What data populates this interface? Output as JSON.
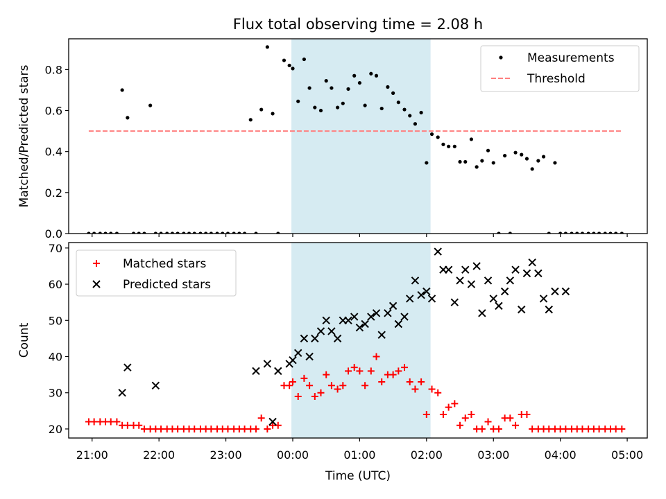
{
  "title": "Flux total observing time = 2.08 h",
  "chart_data": [
    {
      "type": "scatter",
      "panel": "top",
      "xlabel": "",
      "ylabel": "Matched/Predicted stars",
      "x_axis": "time of day (UTC), hours relative to 00:00",
      "xlim": [
        -3.35,
        5.3
      ],
      "ylim": [
        0.0,
        0.95
      ],
      "yticks": [
        0.0,
        0.2,
        0.4,
        0.6,
        0.8
      ],
      "ytick_labels": [
        "0.0",
        "0.2",
        "0.4",
        "0.6",
        "0.8"
      ],
      "shaded_interval": [
        -0.02,
        2.06
      ],
      "legend_position": "upper right",
      "series": [
        {
          "name": "Measurements",
          "color": "#000000",
          "marker": "dot",
          "x": [
            -3.05,
            -2.97,
            -2.88,
            -2.8,
            -2.72,
            -2.63,
            -2.55,
            -2.47,
            -2.38,
            -2.3,
            -2.22,
            -2.13,
            -2.05,
            -1.97,
            -1.88,
            -1.8,
            -1.72,
            -1.63,
            -1.55,
            -1.47,
            -1.38,
            -1.3,
            -1.22,
            -1.13,
            -1.05,
            -0.97,
            -0.88,
            -0.8,
            -0.72,
            -0.63,
            -0.55,
            -0.47,
            -0.38,
            -0.3,
            -0.22,
            -0.13,
            -0.05,
            0.0,
            0.08,
            0.17,
            0.25,
            0.33,
            0.42,
            0.5,
            0.58,
            0.67,
            0.75,
            0.83,
            0.92,
            1.0,
            1.08,
            1.17,
            1.25,
            1.33,
            1.42,
            1.5,
            1.58,
            1.67,
            1.75,
            1.83,
            1.92,
            2.0,
            2.08,
            2.17,
            2.25,
            2.33,
            2.42,
            2.5,
            2.58,
            2.67,
            2.75,
            2.83,
            2.92,
            3.0,
            3.08,
            3.17,
            3.25,
            3.33,
            3.42,
            3.5,
            3.58,
            3.67,
            3.75,
            3.83,
            3.92,
            4.0,
            4.08,
            4.17,
            4.25,
            4.33,
            4.42,
            4.5,
            4.58,
            4.67,
            4.75,
            4.83,
            4.92
          ],
          "y": [
            0.0,
            0.0,
            0.0,
            0.0,
            0.0,
            0.0,
            0.7,
            0.565,
            0.0,
            0.0,
            0.0,
            0.625,
            0.0,
            0.0,
            0.0,
            0.0,
            0.0,
            0.0,
            0.0,
            0.0,
            0.0,
            0.0,
            0.0,
            0.0,
            0.0,
            0.0,
            0.0,
            0.0,
            0.0,
            0.555,
            0.0,
            0.605,
            0.91,
            0.585,
            0.0,
            0.845,
            0.82,
            0.805,
            0.645,
            0.85,
            0.71,
            0.615,
            0.6,
            0.745,
            0.71,
            0.615,
            0.635,
            0.705,
            0.77,
            0.735,
            0.625,
            0.78,
            0.77,
            0.61,
            0.715,
            0.685,
            0.64,
            0.605,
            0.575,
            0.535,
            0.59,
            0.345,
            0.485,
            0.47,
            0.435,
            0.425,
            0.425,
            0.35,
            0.35,
            0.46,
            0.325,
            0.355,
            0.405,
            0.345,
            0.0,
            0.38,
            0.0,
            0.395,
            0.385,
            0.365,
            0.315,
            0.355,
            0.375,
            0.0,
            0.345,
            0.0,
            0.0,
            0.0,
            0.0,
            0.0,
            0.0,
            0.0,
            0.0,
            0.0,
            0.0,
            0.0,
            0.0
          ]
        },
        {
          "name": "Threshold",
          "color": "#ff7f7f",
          "style": "dashed",
          "x": [
            -3.05,
            4.92
          ],
          "y": [
            0.5,
            0.5
          ]
        }
      ]
    },
    {
      "type": "scatter",
      "panel": "bottom",
      "xlabel": "Time (UTC)",
      "ylabel": "Count",
      "x_axis": "time of day (UTC), hours relative to 00:00",
      "xlim": [
        -3.35,
        5.3
      ],
      "ylim": [
        17.5,
        71.5
      ],
      "xticks": [
        -3,
        -2,
        -1,
        0,
        1,
        2,
        3,
        4,
        5
      ],
      "xtick_labels": [
        "21:00",
        "22:00",
        "23:00",
        "00:00",
        "01:00",
        "02:00",
        "03:00",
        "04:00",
        "05:00"
      ],
      "yticks": [
        20,
        30,
        40,
        50,
        60,
        70
      ],
      "ytick_labels": [
        "20",
        "30",
        "40",
        "50",
        "60",
        "70"
      ],
      "shaded_interval": [
        -0.02,
        2.06
      ],
      "legend_position": "upper left",
      "series": [
        {
          "name": "Matched stars",
          "color": "#ff0000",
          "marker": "plus",
          "x": [
            -3.05,
            -2.97,
            -2.88,
            -2.8,
            -2.72,
            -2.63,
            -2.55,
            -2.47,
            -2.38,
            -2.3,
            -2.22,
            -2.13,
            -2.05,
            -1.97,
            -1.88,
            -1.8,
            -1.72,
            -1.63,
            -1.55,
            -1.47,
            -1.38,
            -1.3,
            -1.22,
            -1.13,
            -1.05,
            -0.97,
            -0.88,
            -0.8,
            -0.72,
            -0.63,
            -0.55,
            -0.47,
            -0.38,
            -0.3,
            -0.22,
            -0.13,
            -0.05,
            0.0,
            0.08,
            0.17,
            0.25,
            0.33,
            0.42,
            0.5,
            0.58,
            0.67,
            0.75,
            0.83,
            0.92,
            1.0,
            1.08,
            1.17,
            1.25,
            1.33,
            1.42,
            1.5,
            1.58,
            1.67,
            1.75,
            1.83,
            1.92,
            2.0,
            2.08,
            2.17,
            2.25,
            2.33,
            2.42,
            2.5,
            2.58,
            2.67,
            2.75,
            2.83,
            2.92,
            3.0,
            3.08,
            3.17,
            3.25,
            3.33,
            3.42,
            3.5,
            3.58,
            3.67,
            3.75,
            3.83,
            3.92,
            4.0,
            4.08,
            4.17,
            4.25,
            4.33,
            4.42,
            4.5,
            4.58,
            4.67,
            4.75,
            4.83,
            4.92
          ],
          "y": [
            22,
            22,
            22,
            22,
            22,
            22,
            21,
            21,
            21,
            21,
            20,
            20,
            20,
            20,
            20,
            20,
            20,
            20,
            20,
            20,
            20,
            20,
            20,
            20,
            20,
            20,
            20,
            20,
            20,
            20,
            20,
            23,
            20,
            21,
            21,
            32,
            32,
            33,
            29,
            34,
            32,
            29,
            30,
            35,
            32,
            31,
            32,
            36,
            37,
            36,
            32,
            36,
            40,
            33,
            35,
            35,
            36,
            37,
            33,
            31,
            33,
            24,
            31,
            30,
            24,
            26,
            27,
            21,
            23,
            24,
            20,
            20,
            22,
            20,
            20,
            23,
            23,
            21,
            24,
            24,
            20,
            20,
            20,
            20,
            20,
            20,
            20,
            20,
            20,
            20,
            20,
            20,
            20,
            20,
            20,
            20,
            20
          ]
        },
        {
          "name": "Predicted stars",
          "color": "#000000",
          "marker": "x",
          "x": [
            -2.55,
            -2.47,
            -2.05,
            -0.55,
            -0.38,
            -0.3,
            -0.22,
            -0.05,
            0.0,
            0.08,
            0.17,
            0.25,
            0.33,
            0.42,
            0.5,
            0.58,
            0.67,
            0.75,
            0.83,
            0.92,
            1.0,
            1.08,
            1.17,
            1.25,
            1.33,
            1.42,
            1.5,
            1.58,
            1.67,
            1.75,
            1.83,
            1.92,
            2.0,
            2.08,
            2.17,
            2.25,
            2.33,
            2.42,
            2.5,
            2.58,
            2.67,
            2.75,
            2.83,
            2.92,
            3.0,
            3.08,
            3.17,
            3.25,
            3.33,
            3.42,
            3.5,
            3.58,
            3.67,
            3.75,
            3.83,
            3.92,
            4.08
          ],
          "y": [
            30,
            37,
            32,
            36,
            38,
            22,
            36,
            38,
            39,
            41,
            45,
            40,
            45,
            47,
            50,
            47,
            45,
            50,
            50,
            51,
            48,
            49,
            51,
            52,
            46,
            52,
            54,
            49,
            51,
            56,
            61,
            57,
            58,
            56,
            69,
            64,
            64,
            55,
            61,
            64,
            60,
            65,
            52,
            61,
            56,
            54,
            58,
            61,
            64,
            53,
            63,
            66,
            63,
            56,
            53,
            58,
            58
          ]
        }
      ]
    }
  ]
}
